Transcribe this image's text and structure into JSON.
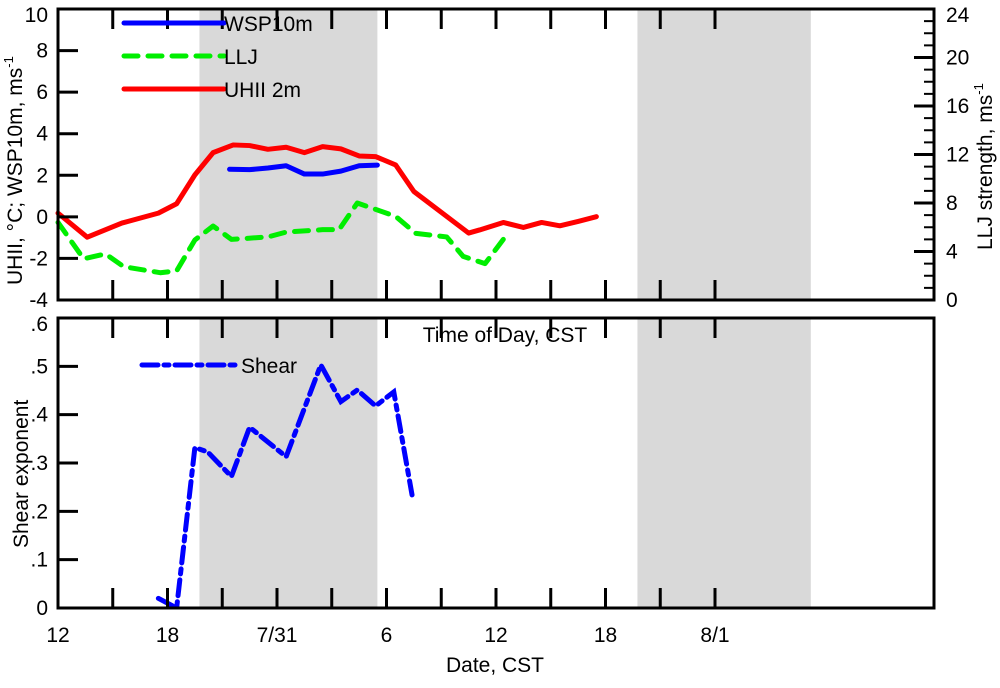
{
  "chart_data": [
    {
      "type": "line",
      "panel": "top",
      "xlabel": "Time of Day, CST",
      "ylabel": "UHII, °C; WSP10m, ms",
      "ylabel_sup": "-1",
      "y2label": "LLJ strength, ms",
      "y2label_sup": "-1",
      "x_unit": "hours since 7/30 12:00 CST",
      "xlim": [
        0,
        48
      ],
      "ylim": [
        -4,
        10
      ],
      "y2lim": [
        0,
        24
      ],
      "yticks": [
        "-4",
        "-2",
        "0",
        "2",
        "4",
        "6",
        "8",
        "10"
      ],
      "y2ticks": [
        "0",
        "4",
        "8",
        "12",
        "16",
        "20",
        "24"
      ],
      "shaded_nighttime_hours": [
        [
          7.75,
          17.5
        ],
        [
          31.75,
          41.25
        ]
      ],
      "legend_position": "top-left",
      "series": [
        {
          "name": "WSP10m",
          "axis": "left",
          "color": "#0000ff",
          "style": "solid",
          "x": [
            9.4,
            10.5,
            11.5,
            12.5,
            13.5,
            14.5,
            15.5,
            16.5,
            17.5
          ],
          "y": [
            2.29,
            2.27,
            2.35,
            2.46,
            2.06,
            2.06,
            2.2,
            2.46,
            2.49
          ]
        },
        {
          "name": "LLJ",
          "axis": "right",
          "color": "#00ee00",
          "style": "dashed",
          "x": [
            0,
            1.4,
            2.6,
            3.6,
            5.6,
            6.5,
            7.5,
            8.5,
            9.5,
            11.5,
            12.5,
            14.5,
            15.4,
            16.4,
            18.5,
            19.6,
            21.3,
            22.2,
            23.4,
            24.4
          ],
          "y": [
            6.4,
            3.4,
            3.8,
            2.75,
            2.25,
            2.4,
            4.95,
            6.1,
            5.0,
            5.2,
            5.6,
            5.8,
            5.8,
            8.0,
            6.9,
            5.5,
            5.2,
            3.6,
            3.0,
            5.0
          ]
        },
        {
          "name": "UHII 2m",
          "axis": "left",
          "color": "#ff0000",
          "style": "solid",
          "x": [
            0,
            1.6,
            3.5,
            5.5,
            6.5,
            7.5,
            8.5,
            9.6,
            10.5,
            11.5,
            12.5,
            13.5,
            14.5,
            15.5,
            16.5,
            17.4,
            18.5,
            19.5,
            22.5,
            23.1,
            24.4,
            25.5,
            26.5,
            27.5,
            28.5,
            29.5
          ],
          "y": [
            0.18,
            -0.98,
            -0.3,
            0.18,
            0.63,
            2.02,
            3.09,
            3.46,
            3.43,
            3.25,
            3.35,
            3.09,
            3.38,
            3.27,
            2.93,
            2.9,
            2.5,
            1.22,
            -0.78,
            -0.63,
            -0.27,
            -0.51,
            -0.27,
            -0.43,
            -0.22,
            0.01
          ]
        }
      ]
    },
    {
      "type": "line",
      "panel": "bottom",
      "xlabel": "Date, CST",
      "ylabel": "Shear exponent",
      "xlim": [
        0,
        48
      ],
      "ylim": [
        0,
        0.6
      ],
      "yticks": [
        "0",
        ".1",
        ".2",
        ".3",
        ".4",
        ".5",
        ".6"
      ],
      "xticks": [
        {
          "hour": 0,
          "label": "12"
        },
        {
          "hour": 6,
          "label": "18"
        },
        {
          "hour": 12,
          "label": "7/31"
        },
        {
          "hour": 18,
          "label": "6"
        },
        {
          "hour": 24,
          "label": "12"
        },
        {
          "hour": 30,
          "label": "18"
        },
        {
          "hour": 36,
          "label": "8/1"
        }
      ],
      "legend_position": "top-left",
      "series": [
        {
          "name": "Shear",
          "color": "#0000ff",
          "style": "dash-dot",
          "x": [
            5.5,
            6.5,
            7.5,
            8.2,
            9.5,
            10.5,
            12.5,
            14.4,
            15.5,
            16.4,
            17.4,
            18.4,
            19.4
          ],
          "y": [
            0.02,
            0.0,
            0.332,
            0.323,
            0.272,
            0.374,
            0.313,
            0.503,
            0.427,
            0.451,
            0.418,
            0.447,
            0.234
          ]
        }
      ]
    }
  ]
}
